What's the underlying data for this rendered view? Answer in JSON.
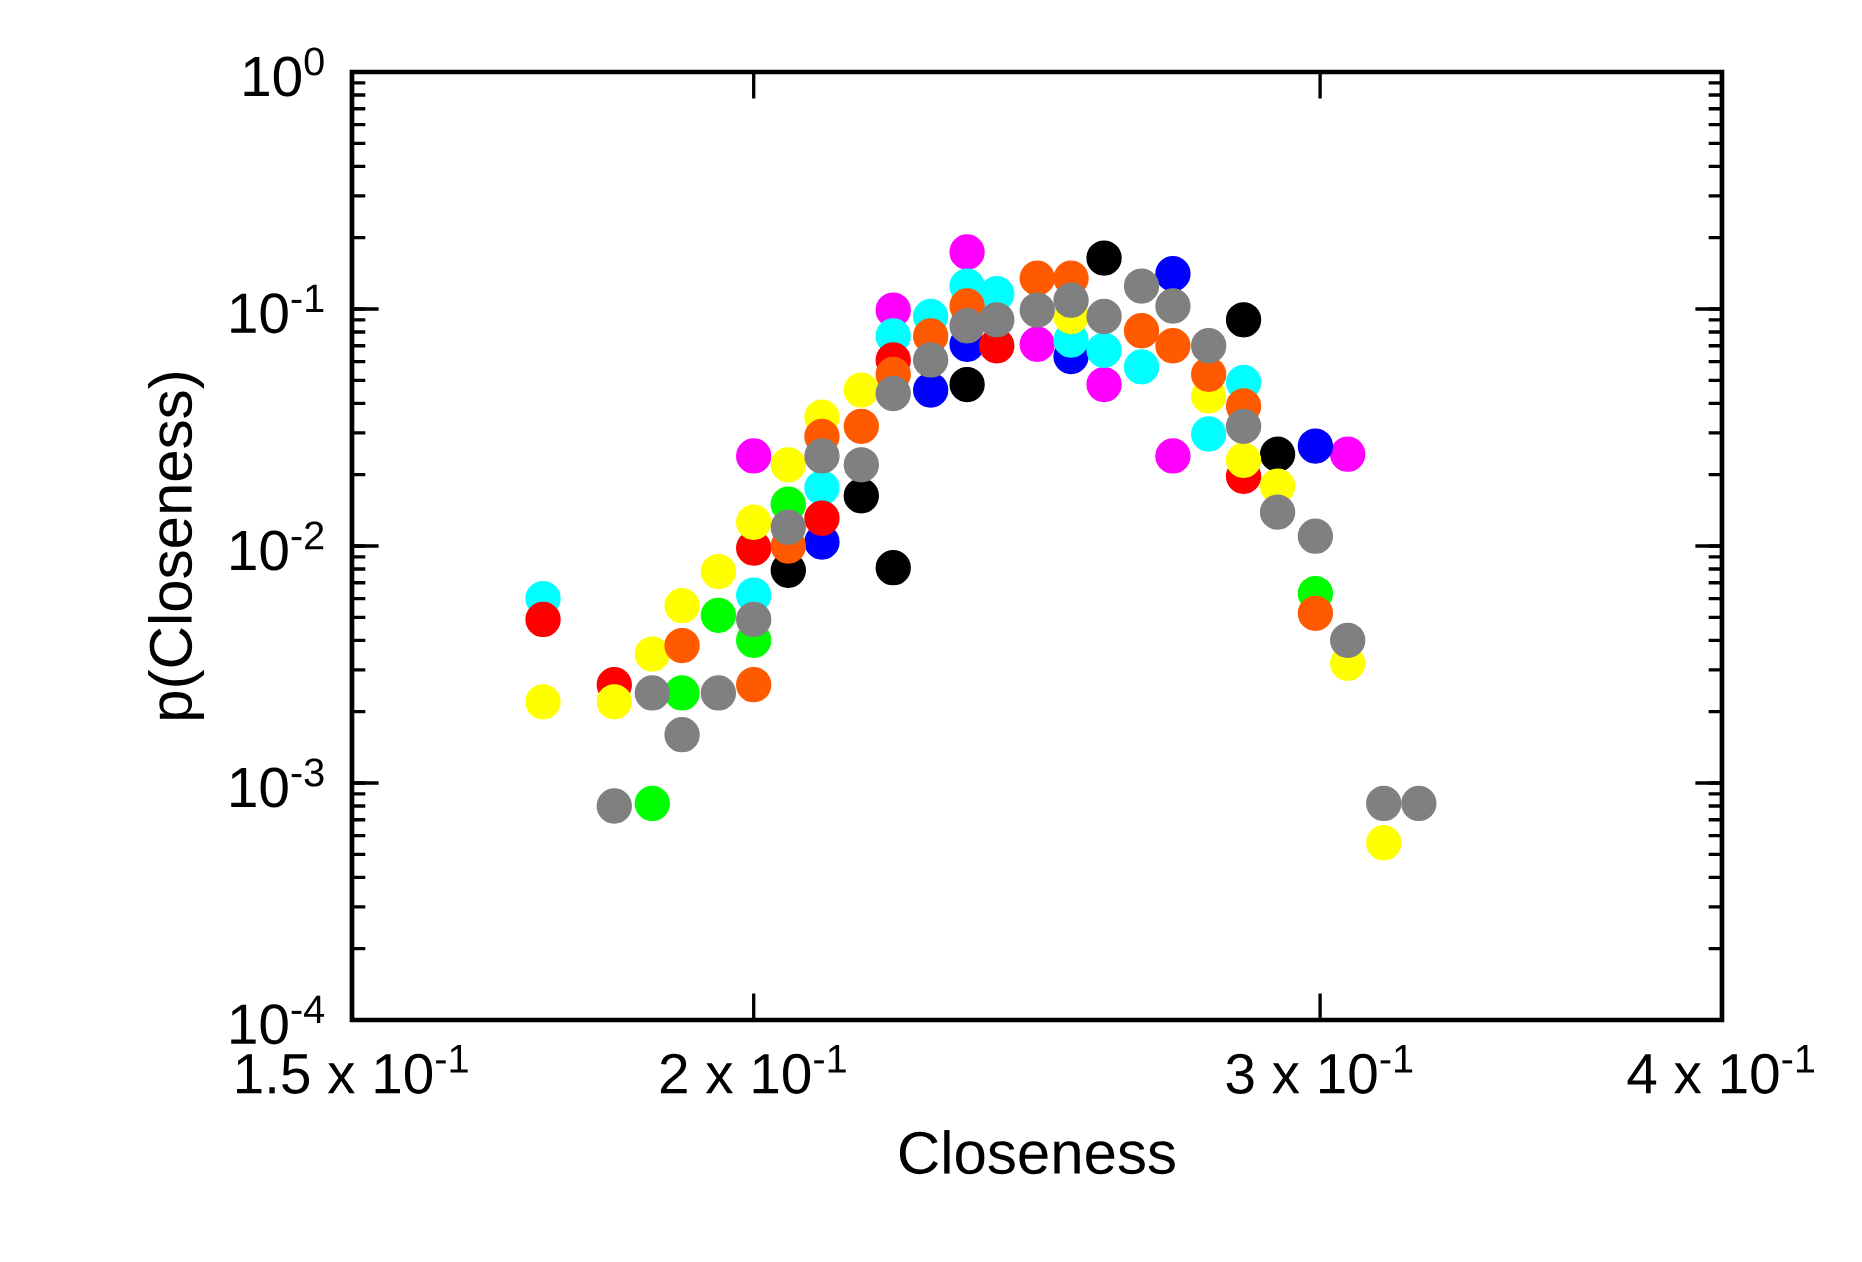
{
  "chart_data": {
    "type": "scatter",
    "xlabel": "Closeness",
    "ylabel": "p(Closeness)",
    "log": "xy",
    "marker": "circle",
    "xlim": [
      0.15,
      0.4
    ],
    "ylim": [
      0.0001,
      1
    ],
    "xticks": [
      {
        "value": 0.15,
        "label": "1.5 x 10$^{-1}$"
      },
      {
        "value": 0.2,
        "label": "2 x 10$^{-1}$"
      },
      {
        "value": 0.3,
        "label": "3 x 10$^{-1}$"
      },
      {
        "value": 0.4,
        "label": "4 x 10$^{-1}$"
      }
    ],
    "yticks": [
      {
        "value": 0.0001,
        "label": "10$^{-4}$"
      },
      {
        "value": 0.001,
        "label": "10$^{-3}$"
      },
      {
        "value": 0.01,
        "label": "10$^{-2}$"
      },
      {
        "value": 0.1,
        "label": "10$^{-1}$"
      },
      {
        "value": 1,
        "label": "10$^{0}$"
      }
    ],
    "series": [
      {
        "color": "#ff00ff",
        "x": [
          0.2,
          0.221,
          0.233,
          0.245,
          0.257,
          0.27,
          0.306
        ],
        "values": [
          0.024,
          0.099,
          0.174,
          0.071,
          0.048,
          0.024,
          0.0244
        ]
      },
      {
        "color": "#000000",
        "x": [
          0.205,
          0.216,
          0.221,
          0.233,
          0.257,
          0.284,
          0.291
        ],
        "values": [
          0.0079,
          0.0163,
          0.0081,
          0.048,
          0.164,
          0.09,
          0.0244
        ]
      },
      {
        "color": "#0000ff",
        "x": [
          0.21,
          0.227,
          0.233,
          0.251,
          0.27,
          0.299
        ],
        "values": [
          0.0104,
          0.0455,
          0.071,
          0.063,
          0.141,
          0.0264
        ]
      },
      {
        "color": "#00ffff",
        "x": [
          0.172,
          0.2,
          0.21,
          0.221,
          0.227,
          0.233,
          0.238,
          0.251,
          0.257,
          0.264,
          0.277,
          0.284
        ],
        "values": [
          0.006,
          0.0062,
          0.0176,
          0.077,
          0.093,
          0.125,
          0.116,
          0.074,
          0.067,
          0.057,
          0.0297,
          0.049
        ]
      },
      {
        "color": "#ff0000",
        "x": [
          0.172,
          0.181,
          0.2,
          0.21,
          0.221,
          0.238,
          0.284
        ],
        "values": [
          0.0049,
          0.0026,
          0.0098,
          0.0131,
          0.061,
          0.07,
          0.0197
        ]
      },
      {
        "color": "#00ff00",
        "x": [
          0.186,
          0.19,
          0.195,
          0.2,
          0.205,
          0.299
        ],
        "values": [
          0.00082,
          0.0024,
          0.0051,
          0.004,
          0.015,
          0.0063
        ]
      },
      {
        "color": "#ffff00",
        "x": [
          0.172,
          0.181,
          0.186,
          0.19,
          0.195,
          0.2,
          0.205,
          0.21,
          0.216,
          0.251,
          0.277,
          0.284,
          0.291,
          0.306,
          0.314
        ],
        "values": [
          0.0022,
          0.0022,
          0.0035,
          0.0056,
          0.0078,
          0.0126,
          0.022,
          0.035,
          0.0455,
          0.093,
          0.043,
          0.023,
          0.0179,
          0.0032,
          0.00056
        ]
      },
      {
        "color": "#ff5a00",
        "x": [
          0.19,
          0.2,
          0.205,
          0.21,
          0.216,
          0.221,
          0.227,
          0.233,
          0.245,
          0.251,
          0.264,
          0.27,
          0.277,
          0.284,
          0.299
        ],
        "values": [
          0.0038,
          0.0026,
          0.01,
          0.029,
          0.032,
          0.053,
          0.077,
          0.103,
          0.135,
          0.135,
          0.081,
          0.07,
          0.053,
          0.039,
          0.0052
        ]
      },
      {
        "color": "#808080",
        "x": [
          0.181,
          0.186,
          0.19,
          0.195,
          0.2,
          0.205,
          0.21,
          0.216,
          0.221,
          0.227,
          0.233,
          0.238,
          0.245,
          0.251,
          0.257,
          0.264,
          0.27,
          0.277,
          0.284,
          0.291,
          0.299,
          0.306,
          0.314,
          0.322
        ],
        "values": [
          0.0008,
          0.0024,
          0.0016,
          0.0024,
          0.0049,
          0.012,
          0.024,
          0.022,
          0.044,
          0.061,
          0.085,
          0.09,
          0.099,
          0.109,
          0.093,
          0.125,
          0.103,
          0.07,
          0.032,
          0.0139,
          0.011,
          0.004,
          0.00082,
          0.00082
        ]
      }
    ]
  }
}
